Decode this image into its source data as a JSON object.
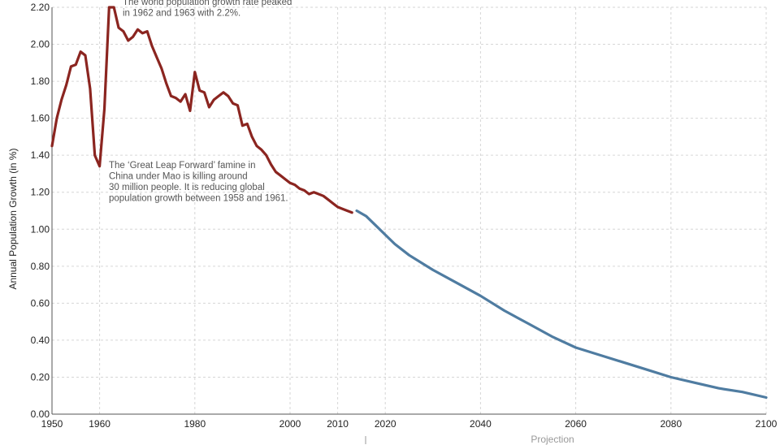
{
  "chart_data": {
    "type": "line",
    "ylabel": "Annual Population Growth (in %)",
    "xlabel": "",
    "xlim": [
      1950,
      2100
    ],
    "ylim": [
      0,
      2.2
    ],
    "grid": true,
    "x_ticks": [
      {
        "value": 1950,
        "label": "1950"
      },
      {
        "value": 1960,
        "label": "1960"
      },
      {
        "value": 1980,
        "label": "1980"
      },
      {
        "value": 2000,
        "label": "2000"
      },
      {
        "value": 2010,
        "label": "2010"
      },
      {
        "value": 2020,
        "label": "2020"
      },
      {
        "value": 2040,
        "label": "2040"
      },
      {
        "value": 2060,
        "label": "2060"
      },
      {
        "value": 2080,
        "label": "2080"
      },
      {
        "value": 2100,
        "label": "2100"
      }
    ],
    "y_ticks": [
      {
        "value": 0,
        "label": "0.00"
      },
      {
        "value": 0.2,
        "label": "0.20"
      },
      {
        "value": 0.4,
        "label": "0.40"
      },
      {
        "value": 0.6,
        "label": "0.60"
      },
      {
        "value": 0.8,
        "label": "0.80"
      },
      {
        "value": 1.0,
        "label": "1.00"
      },
      {
        "value": 1.2,
        "label": "1.20"
      },
      {
        "value": 1.4,
        "label": "1.40"
      },
      {
        "value": 1.6,
        "label": "1.60"
      },
      {
        "value": 1.8,
        "label": "1.80"
      },
      {
        "value": 2.0,
        "label": "2.00"
      },
      {
        "value": 2.2,
        "label": "2.20"
      }
    ],
    "series": [
      {
        "color": "#8b2520",
        "points": [
          [
            1950,
            1.45
          ],
          [
            1951,
            1.6
          ],
          [
            1952,
            1.7
          ],
          [
            1953,
            1.78
          ],
          [
            1954,
            1.88
          ],
          [
            1955,
            1.89
          ],
          [
            1956,
            1.96
          ],
          [
            1957,
            1.94
          ],
          [
            1958,
            1.76
          ],
          [
            1959,
            1.4
          ],
          [
            1960,
            1.34
          ],
          [
            1961,
            1.65
          ],
          [
            1962,
            2.2
          ],
          [
            1963,
            2.2
          ],
          [
            1964,
            2.09
          ],
          [
            1965,
            2.07
          ],
          [
            1966,
            2.02
          ],
          [
            1967,
            2.04
          ],
          [
            1968,
            2.08
          ],
          [
            1969,
            2.06
          ],
          [
            1970,
            2.07
          ],
          [
            1971,
            1.99
          ],
          [
            1972,
            1.93
          ],
          [
            1973,
            1.87
          ],
          [
            1974,
            1.79
          ],
          [
            1975,
            1.72
          ],
          [
            1976,
            1.71
          ],
          [
            1977,
            1.69
          ],
          [
            1978,
            1.73
          ],
          [
            1979,
            1.64
          ],
          [
            1980,
            1.85
          ],
          [
            1981,
            1.75
          ],
          [
            1982,
            1.74
          ],
          [
            1983,
            1.66
          ],
          [
            1984,
            1.7
          ],
          [
            1985,
            1.72
          ],
          [
            1986,
            1.74
          ],
          [
            1987,
            1.72
          ],
          [
            1988,
            1.68
          ],
          [
            1989,
            1.67
          ],
          [
            1990,
            1.56
          ],
          [
            1991,
            1.57
          ],
          [
            1992,
            1.5
          ],
          [
            1993,
            1.45
          ],
          [
            1994,
            1.43
          ],
          [
            1995,
            1.4
          ],
          [
            1996,
            1.35
          ],
          [
            1997,
            1.31
          ],
          [
            1998,
            1.29
          ],
          [
            1999,
            1.27
          ],
          [
            2000,
            1.25
          ],
          [
            2001,
            1.24
          ],
          [
            2002,
            1.22
          ],
          [
            2003,
            1.21
          ],
          [
            2004,
            1.19
          ],
          [
            2005,
            1.2
          ],
          [
            2006,
            1.19
          ],
          [
            2007,
            1.18
          ],
          [
            2008,
            1.16
          ],
          [
            2009,
            1.14
          ],
          [
            2010,
            1.12
          ],
          [
            2011,
            1.11
          ],
          [
            2012,
            1.1
          ],
          [
            2013,
            1.09
          ]
        ]
      },
      {
        "name": "Projection",
        "color": "#4f7ca1",
        "points": [
          [
            2014,
            1.1
          ],
          [
            2016,
            1.07
          ],
          [
            2018,
            1.02
          ],
          [
            2020,
            0.97
          ],
          [
            2022,
            0.92
          ],
          [
            2025,
            0.86
          ],
          [
            2030,
            0.78
          ],
          [
            2035,
            0.71
          ],
          [
            2040,
            0.64
          ],
          [
            2045,
            0.56
          ],
          [
            2050,
            0.49
          ],
          [
            2055,
            0.42
          ],
          [
            2060,
            0.36
          ],
          [
            2065,
            0.32
          ],
          [
            2070,
            0.28
          ],
          [
            2075,
            0.24
          ],
          [
            2080,
            0.2
          ],
          [
            2085,
            0.17
          ],
          [
            2090,
            0.14
          ],
          [
            2095,
            0.12
          ],
          [
            2100,
            0.09
          ]
        ]
      }
    ],
    "annotations": [
      {
        "lines": [
          "The world population growth rate peaked",
          "in 1962 and 1963 with 2.2%."
        ]
      },
      {
        "lines": [
          "The ‘Great Leap Forward’ famine in",
          "China under Mao is killing around",
          "30 million people. It is reducing global",
          "population growth between 1958 and 1961."
        ]
      }
    ],
    "projection_label": "Projection"
  }
}
